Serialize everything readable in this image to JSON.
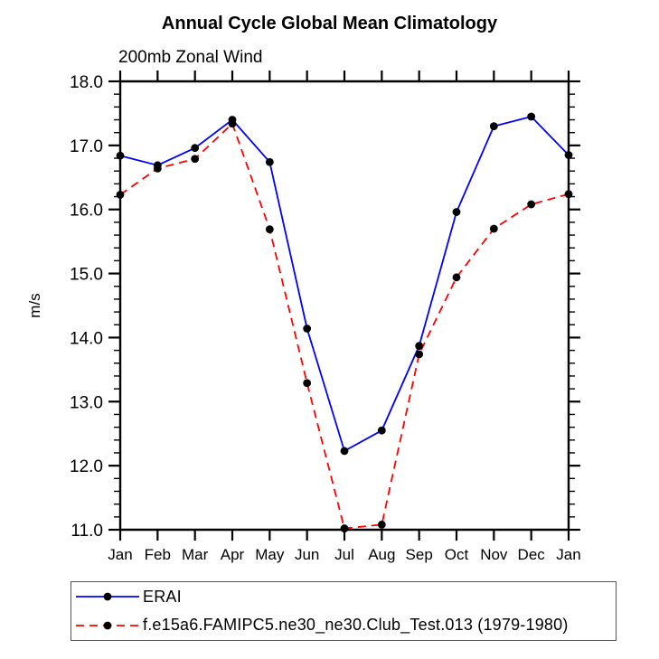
{
  "page": {
    "background": "#ffffff"
  },
  "chart_data": {
    "type": "line",
    "title": "Annual Cycle Global Mean Climatology",
    "subtitle": "200mb Zonal Wind",
    "ylabel": "m/s",
    "xlabel": "",
    "categories": [
      "Jan",
      "Feb",
      "Mar",
      "Apr",
      "May",
      "Jun",
      "Jul",
      "Aug",
      "Sep",
      "Oct",
      "Nov",
      "Dec",
      "Jan"
    ],
    "ylim": [
      11.0,
      18.0
    ],
    "y_major_step": 1.0,
    "y_minor_step": 0.2,
    "y_tick_labels": [
      "11.0",
      "12.0",
      "13.0",
      "14.0",
      "15.0",
      "16.0",
      "17.0",
      "18.0"
    ],
    "grid": false,
    "legend_position": "bottom-left",
    "axis_color": "#000000",
    "marker_color": "#000000",
    "series": [
      {
        "name": "ERAI",
        "color": "#0000ff",
        "dash": "none",
        "values": [
          16.84,
          16.69,
          16.96,
          17.4,
          16.74,
          14.14,
          12.23,
          12.55,
          13.87,
          15.96,
          17.3,
          17.45,
          16.85
        ]
      },
      {
        "name": "f.e15a6.FAMIPC5.ne30_ne30.Club_Test.013 (1979-1980)",
        "color": "#ff0000",
        "dash": "9,6",
        "values": [
          16.23,
          16.64,
          16.79,
          17.34,
          15.69,
          13.29,
          11.02,
          11.08,
          13.74,
          14.94,
          15.7,
          16.08,
          16.24
        ]
      }
    ]
  }
}
